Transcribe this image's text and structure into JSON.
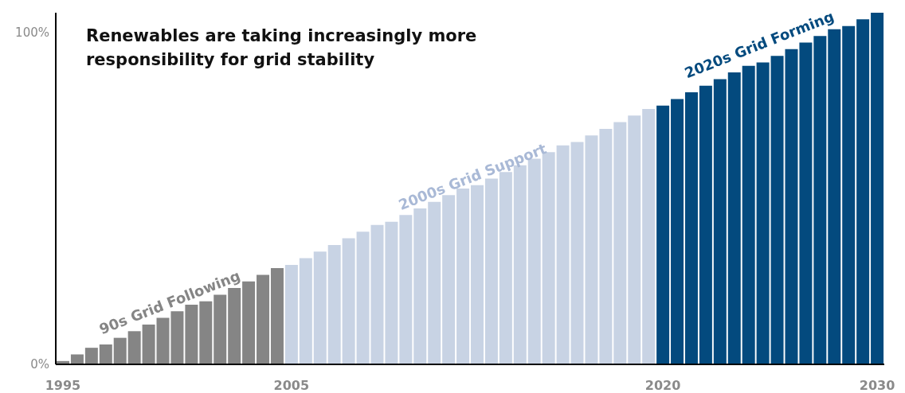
{
  "chart_data": {
    "type": "bar",
    "title": "Renewables are taking increasingly more responsibility for grid stability",
    "annotations": [
      "90s Grid Following",
      "2000s Grid Support",
      "2020s Grid Forming"
    ],
    "categories": [
      "1995",
      null,
      null,
      null,
      null,
      null,
      null,
      null,
      null,
      null,
      null,
      null,
      null,
      null,
      null,
      null,
      "2005",
      null,
      null,
      null,
      null,
      null,
      null,
      null,
      null,
      null,
      null,
      null,
      null,
      null,
      null,
      null,
      null,
      null,
      null,
      null,
      null,
      null,
      null,
      null,
      null,
      null,
      "2020",
      null,
      null,
      null,
      null,
      null,
      null,
      null,
      null,
      null,
      null,
      null,
      null,
      null,
      null,
      "2030"
    ],
    "values": [
      1,
      3,
      5,
      6,
      8,
      10,
      12,
      14,
      16,
      18,
      19,
      21,
      23,
      25,
      27,
      29,
      30,
      32,
      34,
      36,
      38,
      40,
      42,
      43,
      45,
      47,
      49,
      51,
      53,
      54,
      56,
      58,
      60,
      62,
      64,
      66,
      67,
      69,
      71,
      73,
      75,
      77,
      78,
      80,
      82,
      84,
      86,
      88,
      90,
      91,
      93,
      95,
      97,
      99,
      101,
      102,
      104,
      106
    ],
    "colors": [
      "#858585",
      "#858585",
      "#858585",
      "#858585",
      "#858585",
      "#858585",
      "#858585",
      "#858585",
      "#858585",
      "#858585",
      "#858585",
      "#858585",
      "#858585",
      "#858585",
      "#858585",
      "#858585",
      "#c8d3e4",
      "#c8d3e4",
      "#c8d3e4",
      "#c8d3e4",
      "#c8d3e4",
      "#c8d3e4",
      "#c8d3e4",
      "#c8d3e4",
      "#c8d3e4",
      "#c8d3e4",
      "#c8d3e4",
      "#c8d3e4",
      "#c8d3e4",
      "#c8d3e4",
      "#c8d3e4",
      "#c8d3e4",
      "#c8d3e4",
      "#c8d3e4",
      "#c8d3e4",
      "#c8d3e4",
      "#c8d3e4",
      "#c8d3e4",
      "#c8d3e4",
      "#c8d3e4",
      "#c8d3e4",
      "#c8d3e4",
      "#034a7e",
      "#034a7e",
      "#034a7e",
      "#034a7e",
      "#034a7e",
      "#034a7e",
      "#034a7e",
      "#034a7e",
      "#034a7e",
      "#034a7e",
      "#034a7e",
      "#034a7e",
      "#034a7e",
      "#034a7e",
      "#034a7e",
      "#034a7e"
    ],
    "ylim": [
      0,
      106
    ],
    "yticks": [
      {
        "value": 0,
        "label": "0%"
      },
      {
        "value": 100,
        "label": "100%"
      }
    ]
  }
}
